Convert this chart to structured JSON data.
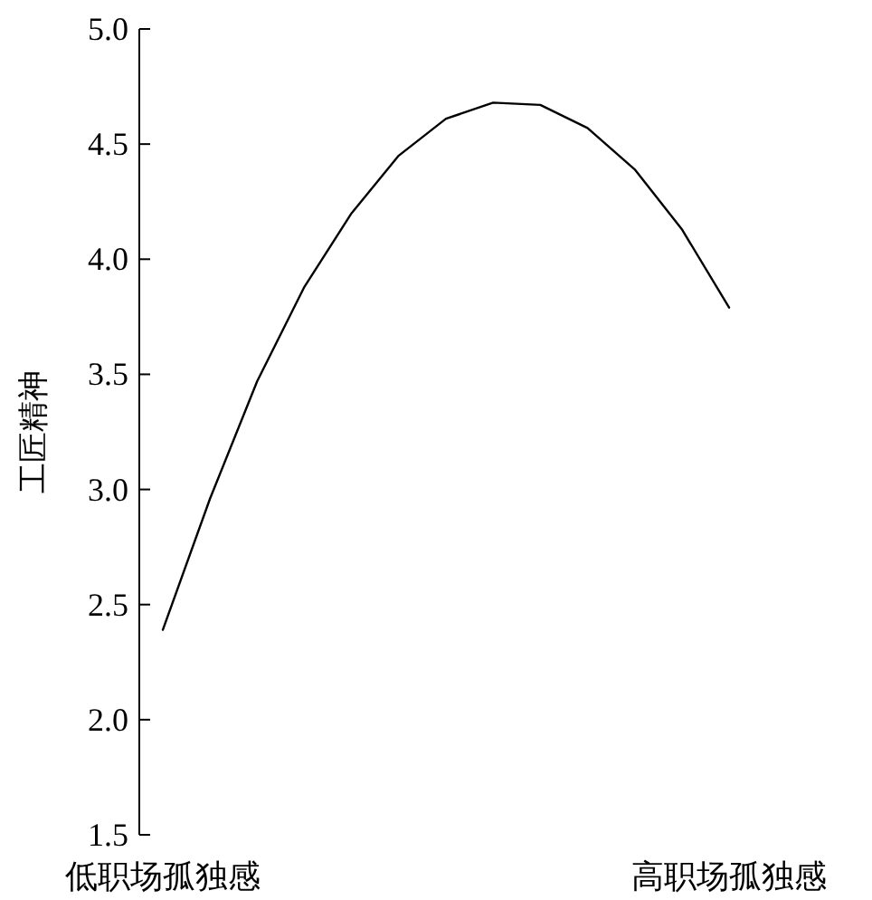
{
  "chart_data": {
    "type": "line",
    "ylabel": "工匠精神",
    "categories": [
      "低职场孤独感",
      null,
      null,
      null,
      null,
      null,
      null,
      null,
      null,
      null,
      null,
      null,
      "高职场孤独感"
    ],
    "series": [
      {
        "color": "#000000",
        "values": [
          2.39,
          2.96,
          3.47,
          3.88,
          4.2,
          4.45,
          4.61,
          4.68,
          4.67,
          4.57,
          4.39,
          4.13,
          3.79
        ]
      }
    ],
    "ylim": [
      1.5,
      5.0
    ],
    "yticks": [
      {
        "value": 1.5,
        "label": "1.5"
      },
      {
        "value": 2.0,
        "label": "2.0"
      },
      {
        "value": 2.5,
        "label": "2.5"
      },
      {
        "value": 3.0,
        "label": "3.0"
      },
      {
        "value": 3.5,
        "label": "3.5"
      },
      {
        "value": 4.0,
        "label": "4.0"
      },
      {
        "value": 4.5,
        "label": "4.5"
      },
      {
        "value": 5.0,
        "label": "5.0"
      }
    ],
    "grid": false,
    "marker": "none",
    "line_style": "solid"
  }
}
